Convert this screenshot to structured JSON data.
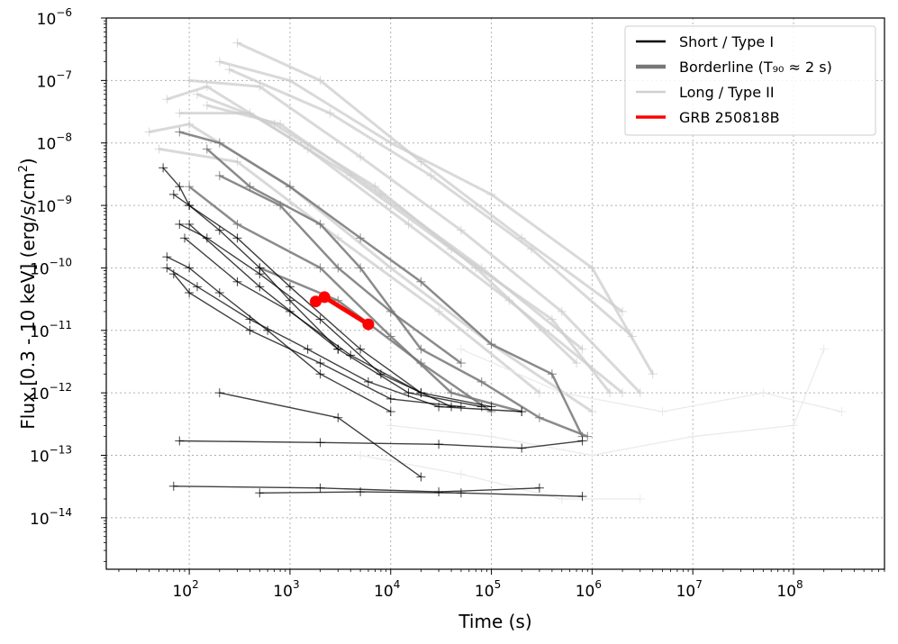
{
  "chart_data": {
    "type": "line",
    "title": "",
    "xlabel": "Time (s)",
    "ylabel": "Flux [0.3 - 10 keV] (erg/s/cm²)",
    "xscale": "log",
    "yscale": "log",
    "xlim": [
      15,
      800000000
    ],
    "ylim": [
      1.5e-15,
      1e-06
    ],
    "grid": true,
    "grid_style": "dotted",
    "legend_position": "top-right",
    "x_ticks": [
      {
        "value": 100,
        "label": "10",
        "exp": "2"
      },
      {
        "value": 1000,
        "label": "10",
        "exp": "3"
      },
      {
        "value": 10000,
        "label": "10",
        "exp": "4"
      },
      {
        "value": 100000,
        "label": "10",
        "exp": "5"
      },
      {
        "value": 1000000,
        "label": "10",
        "exp": "6"
      },
      {
        "value": 10000000,
        "label": "10",
        "exp": "7"
      },
      {
        "value": 100000000,
        "label": "10",
        "exp": "8"
      }
    ],
    "y_ticks": [
      {
        "value": 1e-14,
        "label": "10",
        "exp": "−14"
      },
      {
        "value": 1e-13,
        "label": "10",
        "exp": "−13"
      },
      {
        "value": 1e-12,
        "label": "10",
        "exp": "−12"
      },
      {
        "value": 1e-11,
        "label": "10",
        "exp": "−11"
      },
      {
        "value": 1e-10,
        "label": "10",
        "exp": "−10"
      },
      {
        "value": 1e-09,
        "label": "10",
        "exp": "−9"
      },
      {
        "value": 1e-08,
        "label": "10",
        "exp": "−8"
      },
      {
        "value": 1e-07,
        "label": "10",
        "exp": "−7"
      },
      {
        "value": 1e-06,
        "label": "10",
        "exp": "−6"
      }
    ],
    "legend": [
      {
        "label": "Short / Type I",
        "color": "#000000"
      },
      {
        "label": "Borderline (T₉₀ ≈ 2 s)",
        "color": "#777777"
      },
      {
        "label": "Long / Type II",
        "color": "#d0d0d0"
      },
      {
        "label": "GRB 250818B",
        "color": "#ff0000"
      }
    ],
    "series": [
      {
        "group": "Long / Type II",
        "color": "#cccccc",
        "curves": [
          {
            "x": [
              40,
              100,
              1000,
              10000,
              100000,
              1000000
            ],
            "y": [
              1.5e-08,
              2e-08,
              2e-09,
              1e-10,
              6e-12,
              5e-13
            ]
          },
          {
            "x": [
              60,
              150,
              1500,
              15000,
              150000,
              2000000
            ],
            "y": [
              5e-08,
              8e-08,
              8e-09,
              5e-10,
              3e-11,
              1e-12
            ]
          },
          {
            "x": [
              100,
              500,
              5000,
              50000,
              500000,
              3000000
            ],
            "y": [
              1e-07,
              8e-08,
              6e-09,
              4e-10,
              2e-11,
              1e-12
            ]
          },
          {
            "x": [
              200,
              1000,
              10000,
              100000,
              1000000,
              4000000
            ],
            "y": [
              2e-07,
              1e-07,
              1e-08,
              1.5e-09,
              1e-10,
              2e-12
            ]
          },
          {
            "x": [
              150,
              800,
              8000,
              80000,
              800000
            ],
            "y": [
              4e-08,
              2e-08,
              1.5e-09,
              1e-10,
              5e-12
            ]
          },
          {
            "x": [
              50,
              300,
              3000,
              30000,
              300000
            ],
            "y": [
              8e-09,
              5e-09,
              3e-10,
              2e-11,
              1e-12
            ]
          },
          {
            "x": [
              80,
              400,
              4000,
              40000,
              400000,
              1500000
            ],
            "y": [
              3e-08,
              3e-08,
              3e-09,
              2e-10,
              1.5e-11,
              1e-12
            ]
          },
          {
            "x": [
              300,
              2000,
              20000,
              200000,
              2000000
            ],
            "y": [
              4e-07,
              1e-07,
              5e-09,
              3e-10,
              2e-11
            ]
          },
          {
            "x": [
              120,
              700,
              7000,
              70000,
              700000
            ],
            "y": [
              6e-08,
              2e-08,
              2e-09,
              1e-10,
              3e-12
            ]
          },
          {
            "x": [
              250,
              2500,
              25000,
              250000,
              2500000
            ],
            "y": [
              1.5e-07,
              3e-08,
              3e-09,
              2e-10,
              8e-12
            ]
          }
        ]
      },
      {
        "group": "Long / Type II (faint late-time)",
        "color": "#e8e8e8",
        "curves": [
          {
            "x": [
              10000,
              100000,
              1000000,
              10000000,
              100000000,
              200000000
            ],
            "y": [
              3e-13,
              2e-13,
              1e-13,
              2e-13,
              3e-13,
              5e-12
            ]
          },
          {
            "x": [
              50000,
              500000,
              5000000,
              50000000,
              300000000
            ],
            "y": [
              5e-12,
              1e-12,
              5e-13,
              1e-12,
              5e-13
            ]
          },
          {
            "x": [
              5000,
              50000,
              500000,
              3000000
            ],
            "y": [
              1e-13,
              5e-14,
              2e-14,
              2e-14
            ]
          }
        ]
      },
      {
        "group": "Borderline (T90 ≈ 2 s)",
        "color": "#777777",
        "curves": [
          {
            "x": [
              80,
              200,
              1000,
              5000,
              20000,
              100000,
              400000,
              800000
            ],
            "y": [
              1.5e-08,
              1e-08,
              2e-09,
              3e-10,
              6e-11,
              6e-12,
              2e-12,
              2e-13
            ]
          },
          {
            "x": [
              150,
              400,
              2000,
              5000,
              20000,
              80000,
              300000,
              900000
            ],
            "y": [
              8e-09,
              2e-09,
              5e-10,
              1e-10,
              5e-12,
              1.5e-12,
              4e-13,
              2e-13
            ]
          },
          {
            "x": [
              200,
              800,
              3000,
              10000,
              50000
            ],
            "y": [
              3e-09,
              1e-09,
              1e-10,
              2e-11,
              3e-12
            ]
          },
          {
            "x": [
              100,
              300,
              2000,
              10000,
              40000,
              200000
            ],
            "y": [
              2e-09,
              5e-10,
              1e-10,
              8e-12,
              1e-12,
              5e-13
            ]
          },
          {
            "x": [
              500,
              3000,
              20000,
              100000
            ],
            "y": [
              1e-10,
              3e-11,
              3e-12,
              5e-13
            ]
          }
        ]
      },
      {
        "group": "Short / Type I",
        "color": "#000000",
        "curves": [
          {
            "x": [
              55,
              80,
              100,
              200,
              500,
              1000,
              3000
            ],
            "y": [
              4e-09,
              2e-09,
              1e-09,
              4e-10,
              1e-10,
              3e-11,
              5e-12
            ]
          },
          {
            "x": [
              70,
              100,
              300,
              1000,
              5000,
              20000
            ],
            "y": [
              1.5e-09,
              1e-09,
              3e-10,
              5e-11,
              5e-12,
              1e-12
            ]
          },
          {
            "x": [
              60,
              100,
              200,
              600,
              2000,
              10000
            ],
            "y": [
              1.5e-10,
              1e-10,
              4e-11,
              1e-11,
              2e-12,
              5e-13
            ]
          },
          {
            "x": [
              80,
              150,
              500,
              2000,
              8000,
              40000
            ],
            "y": [
              5e-10,
              3e-10,
              8e-11,
              1.5e-11,
              2e-12,
              6e-13
            ]
          },
          {
            "x": [
              60,
              120,
              400,
              1500,
              6000,
              30000,
              200000
            ],
            "y": [
              1e-10,
              5e-11,
              1.5e-11,
              5e-12,
              1.5e-12,
              6e-13,
              5e-13
            ]
          },
          {
            "x": [
              90,
              300,
              1000,
              4000,
              20000,
              100000
            ],
            "y": [
              3e-10,
              6e-11,
              2e-11,
              4e-12,
              1e-12,
              6e-13
            ]
          },
          {
            "x": [
              100,
              500,
              3000,
              15000,
              80000
            ],
            "y": [
              5e-10,
              5e-11,
              5e-12,
              1e-12,
              6e-13
            ]
          },
          {
            "x": [
              70,
              100,
              400,
              2000,
              10000,
              50000
            ],
            "y": [
              8e-11,
              4e-11,
              1e-11,
              3e-12,
              8e-13,
              6e-13
            ]
          },
          {
            "x": [
              80,
              2000,
              30000,
              200000,
              800000
            ],
            "y": [
              1.7e-13,
              1.6e-13,
              1.5e-13,
              1.3e-13,
              1.7e-13
            ]
          },
          {
            "x": [
              70,
              2000,
              30000,
              300000
            ],
            "y": [
              3.2e-14,
              3e-14,
              2.6e-14,
              3e-14
            ]
          },
          {
            "x": [
              500,
              5000,
              50000,
              800000
            ],
            "y": [
              2.5e-14,
              2.6e-14,
              2.5e-14,
              2.2e-14
            ]
          },
          {
            "x": [
              200,
              3000,
              20000
            ],
            "y": [
              1e-12,
              4e-13,
              4.5e-14
            ]
          }
        ]
      },
      {
        "group": "GRB 250818B",
        "color": "#ff0000",
        "name": "GRB 250818B",
        "x": [
          1800,
          2200,
          6000
        ],
        "y": [
          2.9e-11,
          3.4e-11,
          1.25e-11
        ]
      }
    ]
  }
}
